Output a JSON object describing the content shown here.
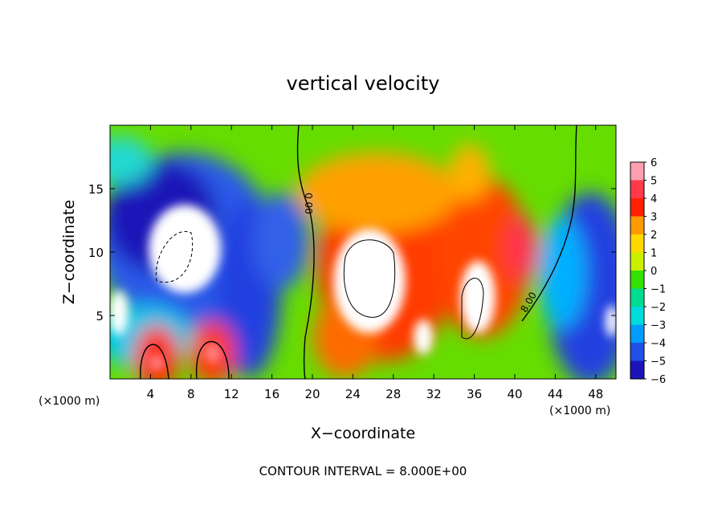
{
  "chart_data": {
    "type": "heatmap",
    "title": "vertical velocity",
    "xlabel": "X−coordinate",
    "ylabel": "Z−coordinate",
    "x_unit": "(×1000 m)",
    "x_unit_right": "(×1000 m)",
    "xlim": [
      0,
      50
    ],
    "ylim": [
      0,
      20
    ],
    "x_ticks": [
      4,
      8,
      12,
      16,
      20,
      24,
      28,
      32,
      36,
      40,
      44,
      48
    ],
    "y_ticks": [
      5,
      10,
      15
    ],
    "colorbar": {
      "ticks": [
        6,
        5,
        4,
        3,
        2,
        1,
        0,
        -1,
        -2,
        -3,
        -4,
        -5,
        -6
      ],
      "tick_labels": [
        "6",
        "5",
        "4",
        "3",
        "2",
        "1",
        "0",
        "−1",
        "−2",
        "−3",
        "−4",
        "−5",
        "−6"
      ],
      "colors": [
        "#ff9fb0",
        "#ff3a4a",
        "#ff2000",
        "#ff9a00",
        "#ffd800",
        "#c8f000",
        "#33e000",
        "#00dc90",
        "#00dcdc",
        "#009cff",
        "#2050e8",
        "#1c14b8",
        "#7a00b8"
      ]
    },
    "contour_labels": [
      "0.00",
      "8.00"
    ],
    "annotation": "CONTOUR INTERVAL = 8.000E+00"
  }
}
